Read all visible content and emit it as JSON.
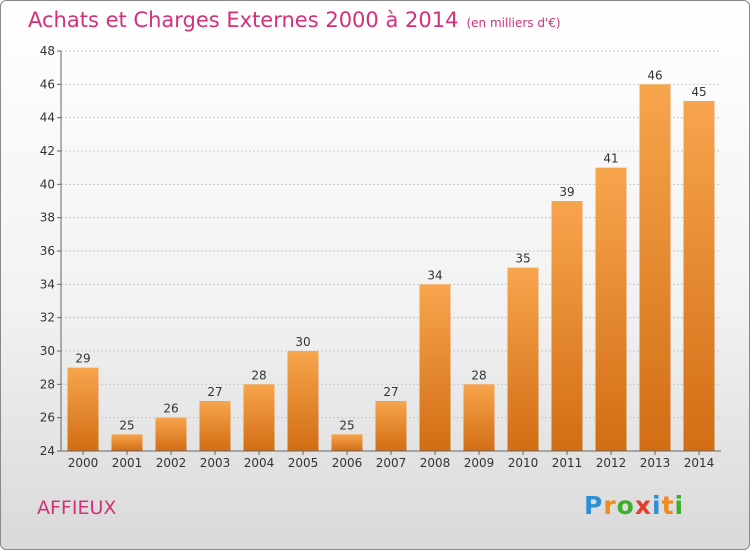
{
  "header": {
    "title": "Achats et Charges Externes 2000 à 2014",
    "subtitle": "(en milliers d'€)"
  },
  "footer": {
    "town": "AFFIEUX",
    "logo": {
      "letters": [
        "P",
        "r",
        "o",
        "x",
        "i",
        "t",
        "i"
      ],
      "colors": [
        "#2f8fd6",
        "#f08a1c",
        "#3fae2a",
        "#e63c2f",
        "#2f8fd6",
        "#f08a1c",
        "#3fae2a"
      ]
    }
  },
  "chart_data": {
    "type": "bar",
    "categories": [
      "2000",
      "2001",
      "2002",
      "2003",
      "2004",
      "2005",
      "2006",
      "2007",
      "2008",
      "2009",
      "2010",
      "2011",
      "2012",
      "2013",
      "2014"
    ],
    "values": [
      29,
      25,
      26,
      27,
      28,
      30,
      25,
      27,
      34,
      28,
      35,
      39,
      41,
      46,
      45
    ],
    "ylim": [
      24,
      48
    ],
    "yticks": [
      24,
      26,
      28,
      30,
      32,
      34,
      36,
      38,
      40,
      42,
      44,
      46,
      48
    ],
    "grid": true,
    "bar_color": "#f39c3c"
  }
}
